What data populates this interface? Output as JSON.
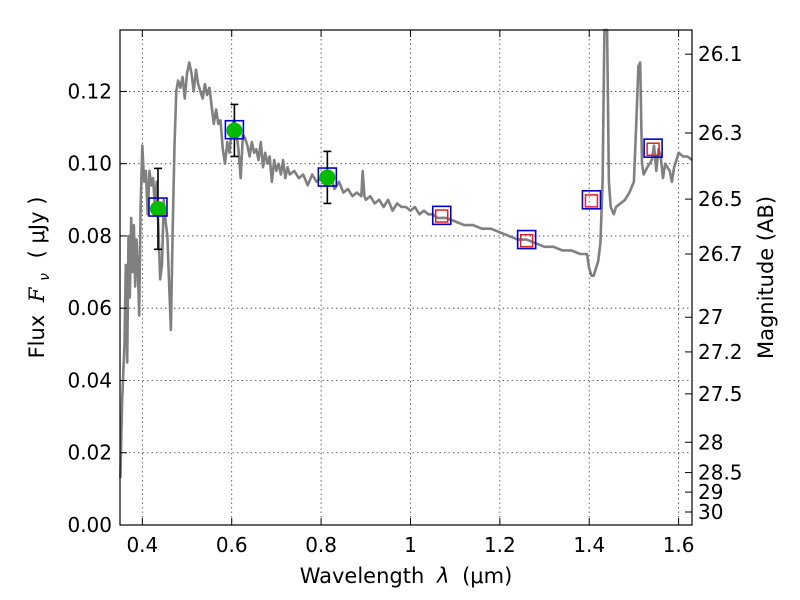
{
  "chart_data": {
    "type": "line",
    "xlabel_prefix": "Wavelength ",
    "xlabel_symbol": "λ",
    "xlabel_unit": "(μm)",
    "ylabel_prefix": "Flux ",
    "ylabel_symbol": "F",
    "ylabel_sub": "ν",
    "ylabel_unit": "( μJy )",
    "y2label": "Magnitude (AB)",
    "xlim": [
      0.35,
      1.63
    ],
    "ylim": [
      0.0,
      0.137
    ],
    "xticks": [
      0.4,
      0.6,
      0.8,
      1.0,
      1.2,
      1.4,
      1.6
    ],
    "xtick_labels": [
      "0.4",
      "0.6",
      "0.8",
      "1",
      "1.2",
      "1.4",
      "1.6"
    ],
    "yticks": [
      0.0,
      0.02,
      0.04,
      0.06,
      0.08,
      0.1,
      0.12
    ],
    "ytick_labels": [
      "0.00",
      "0.02",
      "0.04",
      "0.06",
      "0.08",
      "0.10",
      "0.12"
    ],
    "y2ticks": [
      {
        "label": "26.1",
        "flux": 0.1303
      },
      {
        "label": "26.3",
        "flux": 0.1085
      },
      {
        "label": "26.5",
        "flux": 0.0902
      },
      {
        "label": "26.7",
        "flux": 0.075
      },
      {
        "label": "27",
        "flux": 0.0575
      },
      {
        "label": "27.2",
        "flux": 0.0479
      },
      {
        "label": "27.5",
        "flux": 0.0363
      },
      {
        "label": "28",
        "flux": 0.0229
      },
      {
        "label": "28.5",
        "flux": 0.0145
      },
      {
        "label": "29",
        "flux": 0.0091
      },
      {
        "label": "30",
        "flux": 0.0036
      }
    ],
    "grid": true,
    "series": [
      {
        "kind": "model-spectrum",
        "color": "#808080",
        "points": [
          [
            0.351,
            0.013
          ],
          [
            0.355,
            0.035
          ],
          [
            0.36,
            0.05
          ],
          [
            0.363,
            0.072
          ],
          [
            0.366,
            0.045
          ],
          [
            0.369,
            0.08
          ],
          [
            0.372,
            0.063
          ],
          [
            0.375,
            0.085
          ],
          [
            0.378,
            0.07
          ],
          [
            0.381,
            0.083
          ],
          [
            0.384,
            0.066
          ],
          [
            0.387,
            0.079
          ],
          [
            0.39,
            0.071
          ],
          [
            0.393,
            0.058
          ],
          [
            0.396,
            0.088
          ],
          [
            0.4,
            0.105
          ],
          [
            0.404,
            0.095
          ],
          [
            0.408,
            0.098
          ],
          [
            0.412,
            0.086
          ],
          [
            0.416,
            0.098
          ],
          [
            0.42,
            0.094
          ],
          [
            0.424,
            0.096
          ],
          [
            0.428,
            0.088
          ],
          [
            0.432,
            0.095
          ],
          [
            0.436,
            0.082
          ],
          [
            0.44,
            0.068
          ],
          [
            0.444,
            0.072
          ],
          [
            0.448,
            0.09
          ],
          [
            0.452,
            0.084
          ],
          [
            0.456,
            0.08
          ],
          [
            0.46,
            0.066
          ],
          [
            0.464,
            0.054
          ],
          [
            0.468,
            0.082
          ],
          [
            0.472,
            0.105
          ],
          [
            0.476,
            0.12
          ],
          [
            0.48,
            0.123
          ],
          [
            0.485,
            0.121
          ],
          [
            0.49,
            0.124
          ],
          [
            0.495,
            0.118
          ],
          [
            0.5,
            0.125
          ],
          [
            0.505,
            0.128
          ],
          [
            0.51,
            0.125
          ],
          [
            0.515,
            0.12
          ],
          [
            0.52,
            0.126
          ],
          [
            0.525,
            0.122
          ],
          [
            0.53,
            0.12
          ],
          [
            0.535,
            0.118
          ],
          [
            0.54,
            0.122
          ],
          [
            0.545,
            0.119
          ],
          [
            0.55,
            0.121
          ],
          [
            0.555,
            0.116
          ],
          [
            0.56,
            0.111
          ],
          [
            0.565,
            0.115
          ],
          [
            0.57,
            0.111
          ],
          [
            0.575,
            0.112
          ],
          [
            0.58,
            0.104
          ],
          [
            0.585,
            0.1
          ],
          [
            0.59,
            0.106
          ],
          [
            0.595,
            0.103
          ],
          [
            0.6,
            0.11
          ],
          [
            0.605,
            0.112
          ],
          [
            0.61,
            0.109
          ],
          [
            0.615,
            0.104
          ],
          [
            0.62,
            0.096
          ],
          [
            0.625,
            0.108
          ],
          [
            0.63,
            0.107
          ],
          [
            0.635,
            0.105
          ],
          [
            0.64,
            0.102
          ],
          [
            0.645,
            0.106
          ],
          [
            0.65,
            0.103
          ],
          [
            0.655,
            0.104
          ],
          [
            0.66,
            0.101
          ],
          [
            0.665,
            0.106
          ],
          [
            0.67,
            0.099
          ],
          [
            0.675,
            0.103
          ],
          [
            0.68,
            0.1
          ],
          [
            0.685,
            0.102
          ],
          [
            0.69,
            0.095
          ],
          [
            0.695,
            0.101
          ],
          [
            0.7,
            0.098
          ],
          [
            0.705,
            0.1
          ],
          [
            0.71,
            0.097
          ],
          [
            0.715,
            0.101
          ],
          [
            0.72,
            0.096
          ],
          [
            0.725,
            0.099
          ],
          [
            0.73,
            0.097
          ],
          [
            0.74,
            0.098
          ],
          [
            0.75,
            0.096
          ],
          [
            0.76,
            0.097
          ],
          [
            0.77,
            0.094
          ],
          [
            0.78,
            0.097
          ],
          [
            0.79,
            0.095
          ],
          [
            0.8,
            0.096
          ],
          [
            0.81,
            0.094
          ],
          [
            0.82,
            0.097
          ],
          [
            0.83,
            0.093
          ],
          [
            0.84,
            0.095
          ],
          [
            0.85,
            0.092
          ],
          [
            0.86,
            0.093
          ],
          [
            0.87,
            0.091
          ],
          [
            0.88,
            0.092
          ],
          [
            0.89,
            0.091
          ],
          [
            0.893,
            0.098
          ],
          [
            0.897,
            0.091
          ],
          [
            0.9,
            0.09
          ],
          [
            0.91,
            0.091
          ],
          [
            0.92,
            0.089
          ],
          [
            0.93,
            0.09
          ],
          [
            0.94,
            0.088
          ],
          [
            0.95,
            0.09
          ],
          [
            0.96,
            0.087
          ],
          [
            0.97,
            0.089
          ],
          [
            0.98,
            0.088
          ],
          [
            0.99,
            0.088
          ],
          [
            1.0,
            0.087
          ],
          [
            1.01,
            0.088
          ],
          [
            1.02,
            0.086
          ],
          [
            1.03,
            0.087
          ],
          [
            1.04,
            0.086
          ],
          [
            1.05,
            0.086
          ],
          [
            1.06,
            0.085
          ],
          [
            1.08,
            0.085
          ],
          [
            1.1,
            0.084
          ],
          [
            1.12,
            0.083
          ],
          [
            1.14,
            0.083
          ],
          [
            1.16,
            0.082
          ],
          [
            1.18,
            0.082
          ],
          [
            1.2,
            0.081
          ],
          [
            1.22,
            0.08
          ],
          [
            1.24,
            0.079
          ],
          [
            1.26,
            0.079
          ],
          [
            1.28,
            0.078
          ],
          [
            1.3,
            0.077
          ],
          [
            1.32,
            0.077
          ],
          [
            1.34,
            0.076
          ],
          [
            1.36,
            0.076
          ],
          [
            1.38,
            0.075
          ],
          [
            1.395,
            0.075
          ],
          [
            1.4,
            0.071
          ],
          [
            1.405,
            0.069
          ],
          [
            1.41,
            0.069
          ],
          [
            1.415,
            0.071
          ],
          [
            1.42,
            0.073
          ],
          [
            1.425,
            0.078
          ],
          [
            1.43,
            0.095
          ],
          [
            1.434,
            0.137
          ],
          [
            1.44,
            0.137
          ],
          [
            1.444,
            0.095
          ],
          [
            1.448,
            0.088
          ],
          [
            1.455,
            0.086
          ],
          [
            1.46,
            0.088
          ],
          [
            1.47,
            0.089
          ],
          [
            1.48,
            0.09
          ],
          [
            1.49,
            0.092
          ],
          [
            1.5,
            0.095
          ],
          [
            1.505,
            0.11
          ],
          [
            1.51,
            0.127
          ],
          [
            1.514,
            0.128
          ],
          [
            1.518,
            0.1
          ],
          [
            1.522,
            0.097
          ],
          [
            1.53,
            0.099
          ],
          [
            1.54,
            0.101
          ],
          [
            1.545,
            0.105
          ],
          [
            1.55,
            0.098
          ],
          [
            1.555,
            0.104
          ],
          [
            1.56,
            0.102
          ],
          [
            1.565,
            0.096
          ],
          [
            1.57,
            0.1
          ],
          [
            1.58,
            0.098
          ],
          [
            1.585,
            0.095
          ],
          [
            1.59,
            0.099
          ],
          [
            1.595,
            0.101
          ],
          [
            1.6,
            0.103
          ],
          [
            1.61,
            0.102
          ],
          [
            1.62,
            0.102
          ],
          [
            1.63,
            0.101
          ]
        ]
      },
      {
        "kind": "observed-photometry",
        "marker": "filled-circle",
        "color": "#00bb00",
        "points": [
          {
            "x": 0.435,
            "y": 0.0875,
            "err": 0.0112
          },
          {
            "x": 0.606,
            "y": 0.1092,
            "err": 0.0072
          },
          {
            "x": 0.814,
            "y": 0.0962,
            "err": 0.0072
          }
        ]
      },
      {
        "kind": "model-photometry",
        "marker": "open-square",
        "color": "#0000cc",
        "points": [
          {
            "x": 0.435,
            "y": 0.088
          },
          {
            "x": 0.606,
            "y": 0.1094
          },
          {
            "x": 0.814,
            "y": 0.0963
          },
          {
            "x": 1.07,
            "y": 0.0857
          },
          {
            "x": 1.26,
            "y": 0.079
          },
          {
            "x": 1.405,
            "y": 0.09
          },
          {
            "x": 1.543,
            "y": 0.1043
          }
        ]
      },
      {
        "kind": "upper-limits",
        "marker": "open-square",
        "color": "#dd2222",
        "points": [
          {
            "x": 1.07,
            "y": 0.0855
          },
          {
            "x": 1.26,
            "y": 0.0787
          },
          {
            "x": 1.405,
            "y": 0.0897
          },
          {
            "x": 1.543,
            "y": 0.104
          }
        ]
      }
    ]
  }
}
